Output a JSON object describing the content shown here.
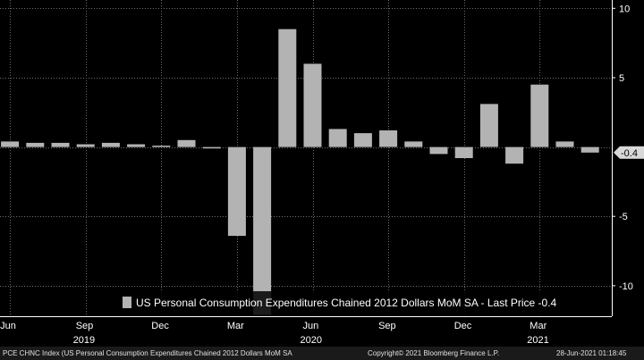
{
  "chart_data": {
    "type": "bar",
    "title": "",
    "categories": [
      "2019-06",
      "2019-07",
      "2019-08",
      "2019-09",
      "2019-10",
      "2019-11",
      "2019-12",
      "2020-01",
      "2020-02",
      "2020-03",
      "2020-04",
      "2020-05",
      "2020-06",
      "2020-07",
      "2020-08",
      "2020-09",
      "2020-10",
      "2020-11",
      "2020-12",
      "2021-01",
      "2021-02",
      "2021-03",
      "2021-04",
      "2021-05"
    ],
    "values": [
      0.4,
      0.3,
      0.3,
      0.2,
      0.3,
      0.2,
      0.1,
      0.5,
      -0.1,
      -6.4,
      -12.1,
      8.5,
      6.0,
      1.3,
      1.0,
      1.2,
      0.4,
      -0.5,
      -0.8,
      3.1,
      -1.2,
      4.5,
      0.4,
      -0.4
    ],
    "ylim": [
      -12.2,
      10.6
    ],
    "yticks": [
      10,
      5,
      -5,
      -10
    ],
    "ytick_labels": [
      "10",
      "5",
      "-5",
      "-10"
    ],
    "xtick_labels": [
      {
        "label": "Jun",
        "index": 0
      },
      {
        "label": "Sep",
        "index": 3
      },
      {
        "label": "Dec",
        "index": 6
      },
      {
        "label": "Mar",
        "index": 9
      },
      {
        "label": "Jun",
        "index": 12
      },
      {
        "label": "Sep",
        "index": 15
      },
      {
        "label": "Dec",
        "index": 18
      },
      {
        "label": "Mar",
        "index": 21
      }
    ],
    "year_labels": [
      {
        "label": "2019",
        "index": 3
      },
      {
        "label": "2020",
        "index": 12
      },
      {
        "label": "2021",
        "index": 21
      }
    ],
    "last_price_label": "-0.4",
    "legend": "US Personal Consumption Expenditures Chained 2012 Dollars MoM SA - Last Price -0.4",
    "xlabel": "",
    "ylabel": "",
    "colors": {
      "bar": "#b3b3b3",
      "background": "#000000",
      "grid": "#6e6e6e",
      "last_price_box": "#d9d9d9"
    }
  },
  "footer": {
    "left": "PCE CHNC Index (US Personal Consumption Expenditures Chained 2012 Dollars MoM SA",
    "copyright": "Copyright© 2021 Bloomberg Finance L.P.",
    "timestamp": "28-Jun-2021 01:18:45"
  }
}
